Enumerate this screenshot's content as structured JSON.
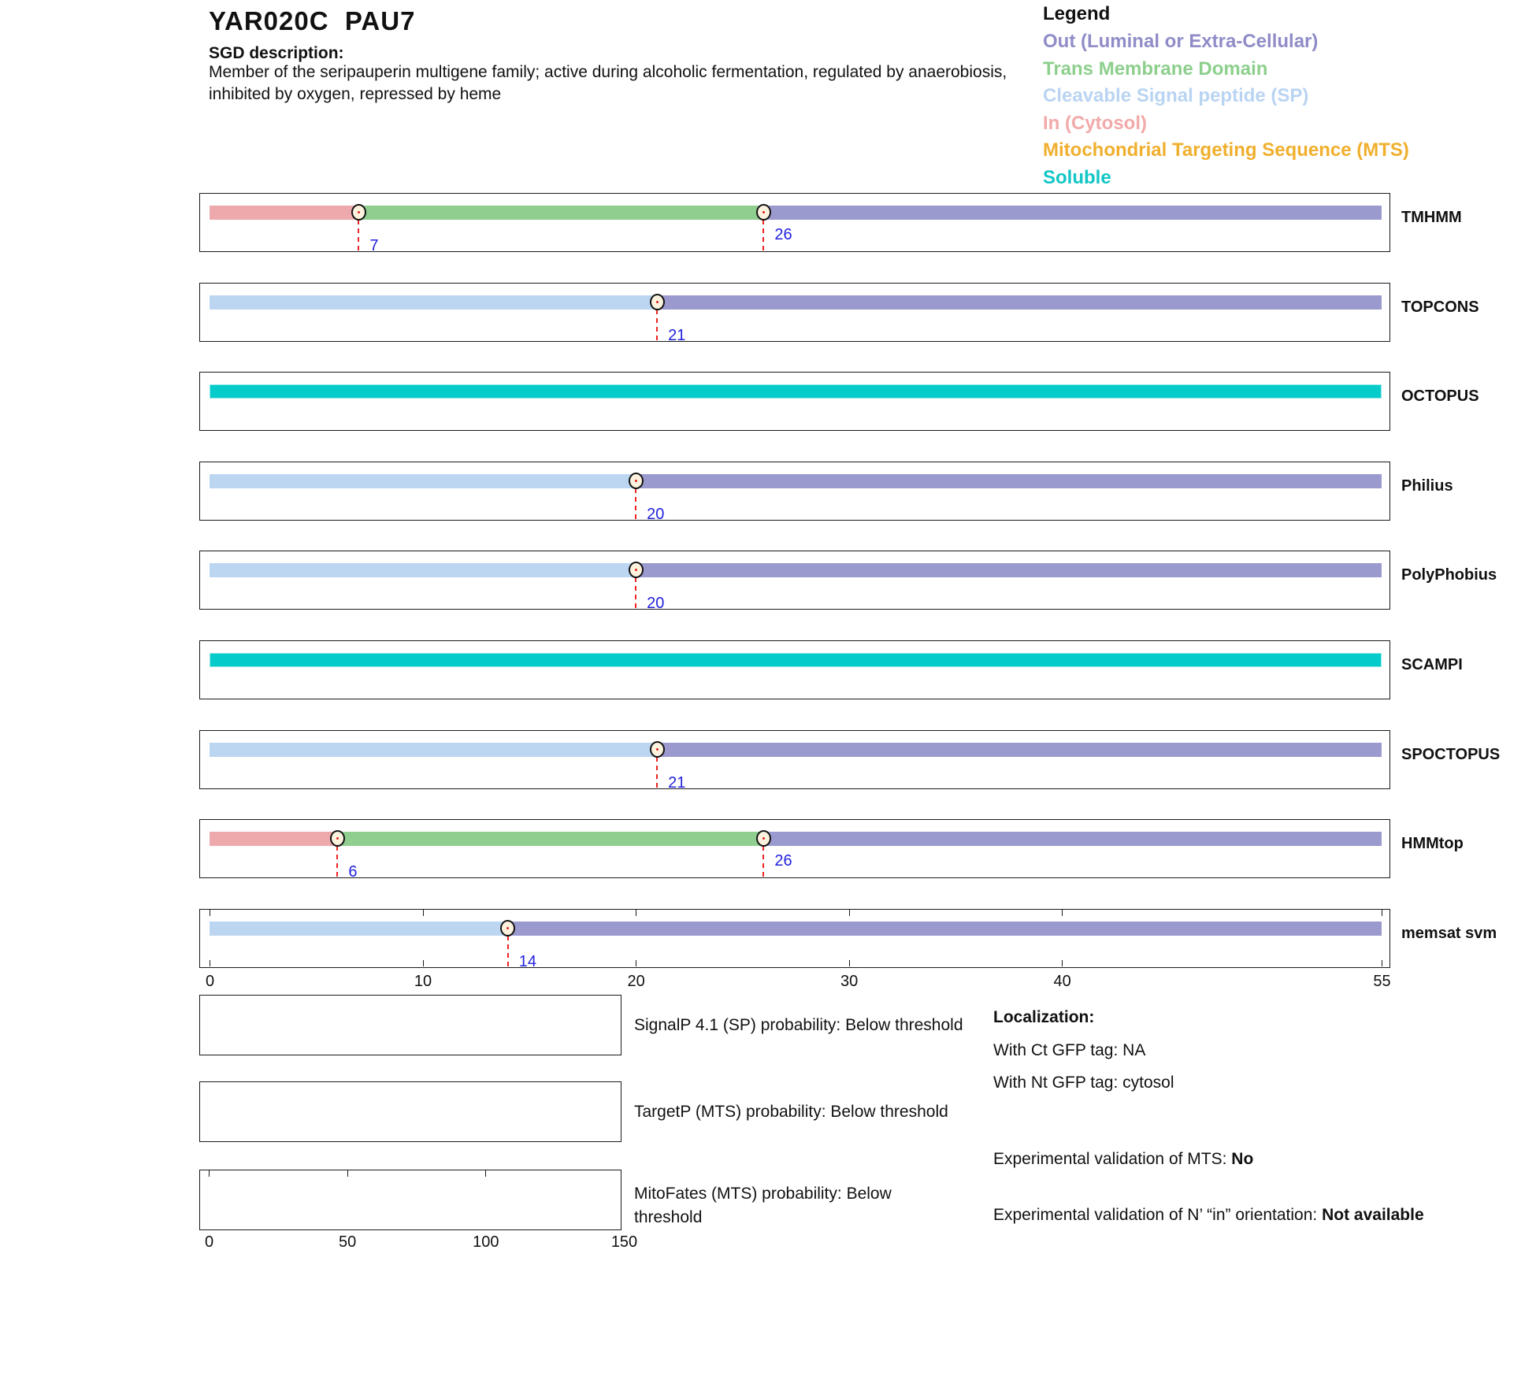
{
  "header": {
    "title": "YAR020C  PAU7",
    "sgd_label": "SGD description:",
    "description_line1": "Member of the seripauperin multigene family; active during alcoholic fermentation, regulated by anaerobiosis,",
    "description_line2": "inhibited by oxygen, repressed by heme"
  },
  "legend": {
    "title": "Legend",
    "items": [
      {
        "key": "out",
        "label": "Out (Luminal or Extra-Cellular)",
        "color": "#8F8CC8"
      },
      {
        "key": "tm",
        "label": "Trans Membrane Domain",
        "color": "#8DCF8D"
      },
      {
        "key": "sp",
        "label": "Cleavable Signal peptide (SP)",
        "color": "#B9D4F2"
      },
      {
        "key": "in",
        "label": "In (Cytosol)",
        "color": "#F2A9A9"
      },
      {
        "key": "mts",
        "label": "Mitochondrial Targeting Sequence (MTS)",
        "color": "#F0AF2D"
      },
      {
        "key": "soluble",
        "label": "Soluble",
        "color": "#12C6C6"
      }
    ]
  },
  "chart_data": {
    "type": "protein-topology-prediction-tracks",
    "axis": {
      "min": 0,
      "max": 55,
      "ticks": [
        0,
        10,
        20,
        30,
        40,
        55
      ]
    },
    "region_colors": {
      "in": "#EDA9AB",
      "tm": "#90CE90",
      "out": "#9B9ACE",
      "sp": "#BCD6F1",
      "soluble": "#06CBCB"
    },
    "tracks": [
      {
        "name": "TMHMM",
        "segments": [
          {
            "from": 0,
            "to": 7,
            "region": "in"
          },
          {
            "from": 7,
            "to": 26,
            "region": "tm"
          },
          {
            "from": 26,
            "to": 55,
            "region": "out"
          }
        ],
        "markers": [
          {
            "pos": 7,
            "label": "7",
            "level": "low"
          },
          {
            "pos": 26,
            "label": "26",
            "level": "mid"
          }
        ]
      },
      {
        "name": "TOPCONS",
        "segments": [
          {
            "from": 0,
            "to": 21,
            "region": "sp"
          },
          {
            "from": 21,
            "to": 55,
            "region": "out"
          }
        ],
        "markers": [
          {
            "pos": 21,
            "label": "21",
            "level": "low"
          }
        ]
      },
      {
        "name": "OCTOPUS",
        "segments": [
          {
            "from": 0,
            "to": 55,
            "region": "soluble"
          }
        ],
        "markers": []
      },
      {
        "name": "Philius",
        "segments": [
          {
            "from": 0,
            "to": 20,
            "region": "sp"
          },
          {
            "from": 20,
            "to": 55,
            "region": "out"
          }
        ],
        "markers": [
          {
            "pos": 20,
            "label": "20",
            "level": "low"
          }
        ]
      },
      {
        "name": "PolyPhobius",
        "segments": [
          {
            "from": 0,
            "to": 20,
            "region": "sp"
          },
          {
            "from": 20,
            "to": 55,
            "region": "out"
          }
        ],
        "markers": [
          {
            "pos": 20,
            "label": "20",
            "level": "low"
          }
        ]
      },
      {
        "name": "SCAMPI",
        "segments": [
          {
            "from": 0,
            "to": 55,
            "region": "soluble"
          }
        ],
        "markers": []
      },
      {
        "name": "SPOCTOPUS",
        "segments": [
          {
            "from": 0,
            "to": 21,
            "region": "sp"
          },
          {
            "from": 21,
            "to": 55,
            "region": "out"
          }
        ],
        "markers": [
          {
            "pos": 21,
            "label": "21",
            "level": "low"
          }
        ]
      },
      {
        "name": "HMMtop",
        "segments": [
          {
            "from": 0,
            "to": 6,
            "region": "in"
          },
          {
            "from": 6,
            "to": 26,
            "region": "tm"
          },
          {
            "from": 26,
            "to": 55,
            "region": "out"
          }
        ],
        "markers": [
          {
            "pos": 6,
            "label": "6",
            "level": "low"
          },
          {
            "pos": 26,
            "label": "26",
            "level": "mid"
          }
        ]
      },
      {
        "name": "memsat svm",
        "segments": [
          {
            "from": 0,
            "to": 14,
            "region": "sp"
          },
          {
            "from": 14,
            "to": 55,
            "region": "out"
          }
        ],
        "markers": [
          {
            "pos": 14,
            "label": "14",
            "level": "low"
          }
        ],
        "has_ruler_ticks": true
      }
    ]
  },
  "probability_plots": [
    {
      "name": "signalp",
      "label": "SignalP 4.1 (SP) probability: Below threshold"
    },
    {
      "name": "targetp",
      "label": "TargetP (MTS) probability: Below threshold"
    },
    {
      "name": "mitofates",
      "label": "MitoFates (MTS) probability: Below\nthreshold",
      "axis": {
        "min": 0,
        "max": 150,
        "ticks": [
          0,
          50,
          100,
          150
        ]
      }
    }
  ],
  "localization": {
    "title": "Localization:",
    "lines": [
      "With Ct GFP tag: NA",
      "With Nt GFP tag: cytosol"
    ],
    "mts_validation_label": "Experimental validation of MTS: ",
    "mts_validation_value": "No",
    "orientation_label": "Experimental validation of N’ “in” orientation: ",
    "orientation_value": "Not available"
  },
  "styles": {
    "marker_line_color": "#EE2222",
    "marker_label_color": "#2222DD",
    "marker_fill": "#FCF2DE"
  }
}
